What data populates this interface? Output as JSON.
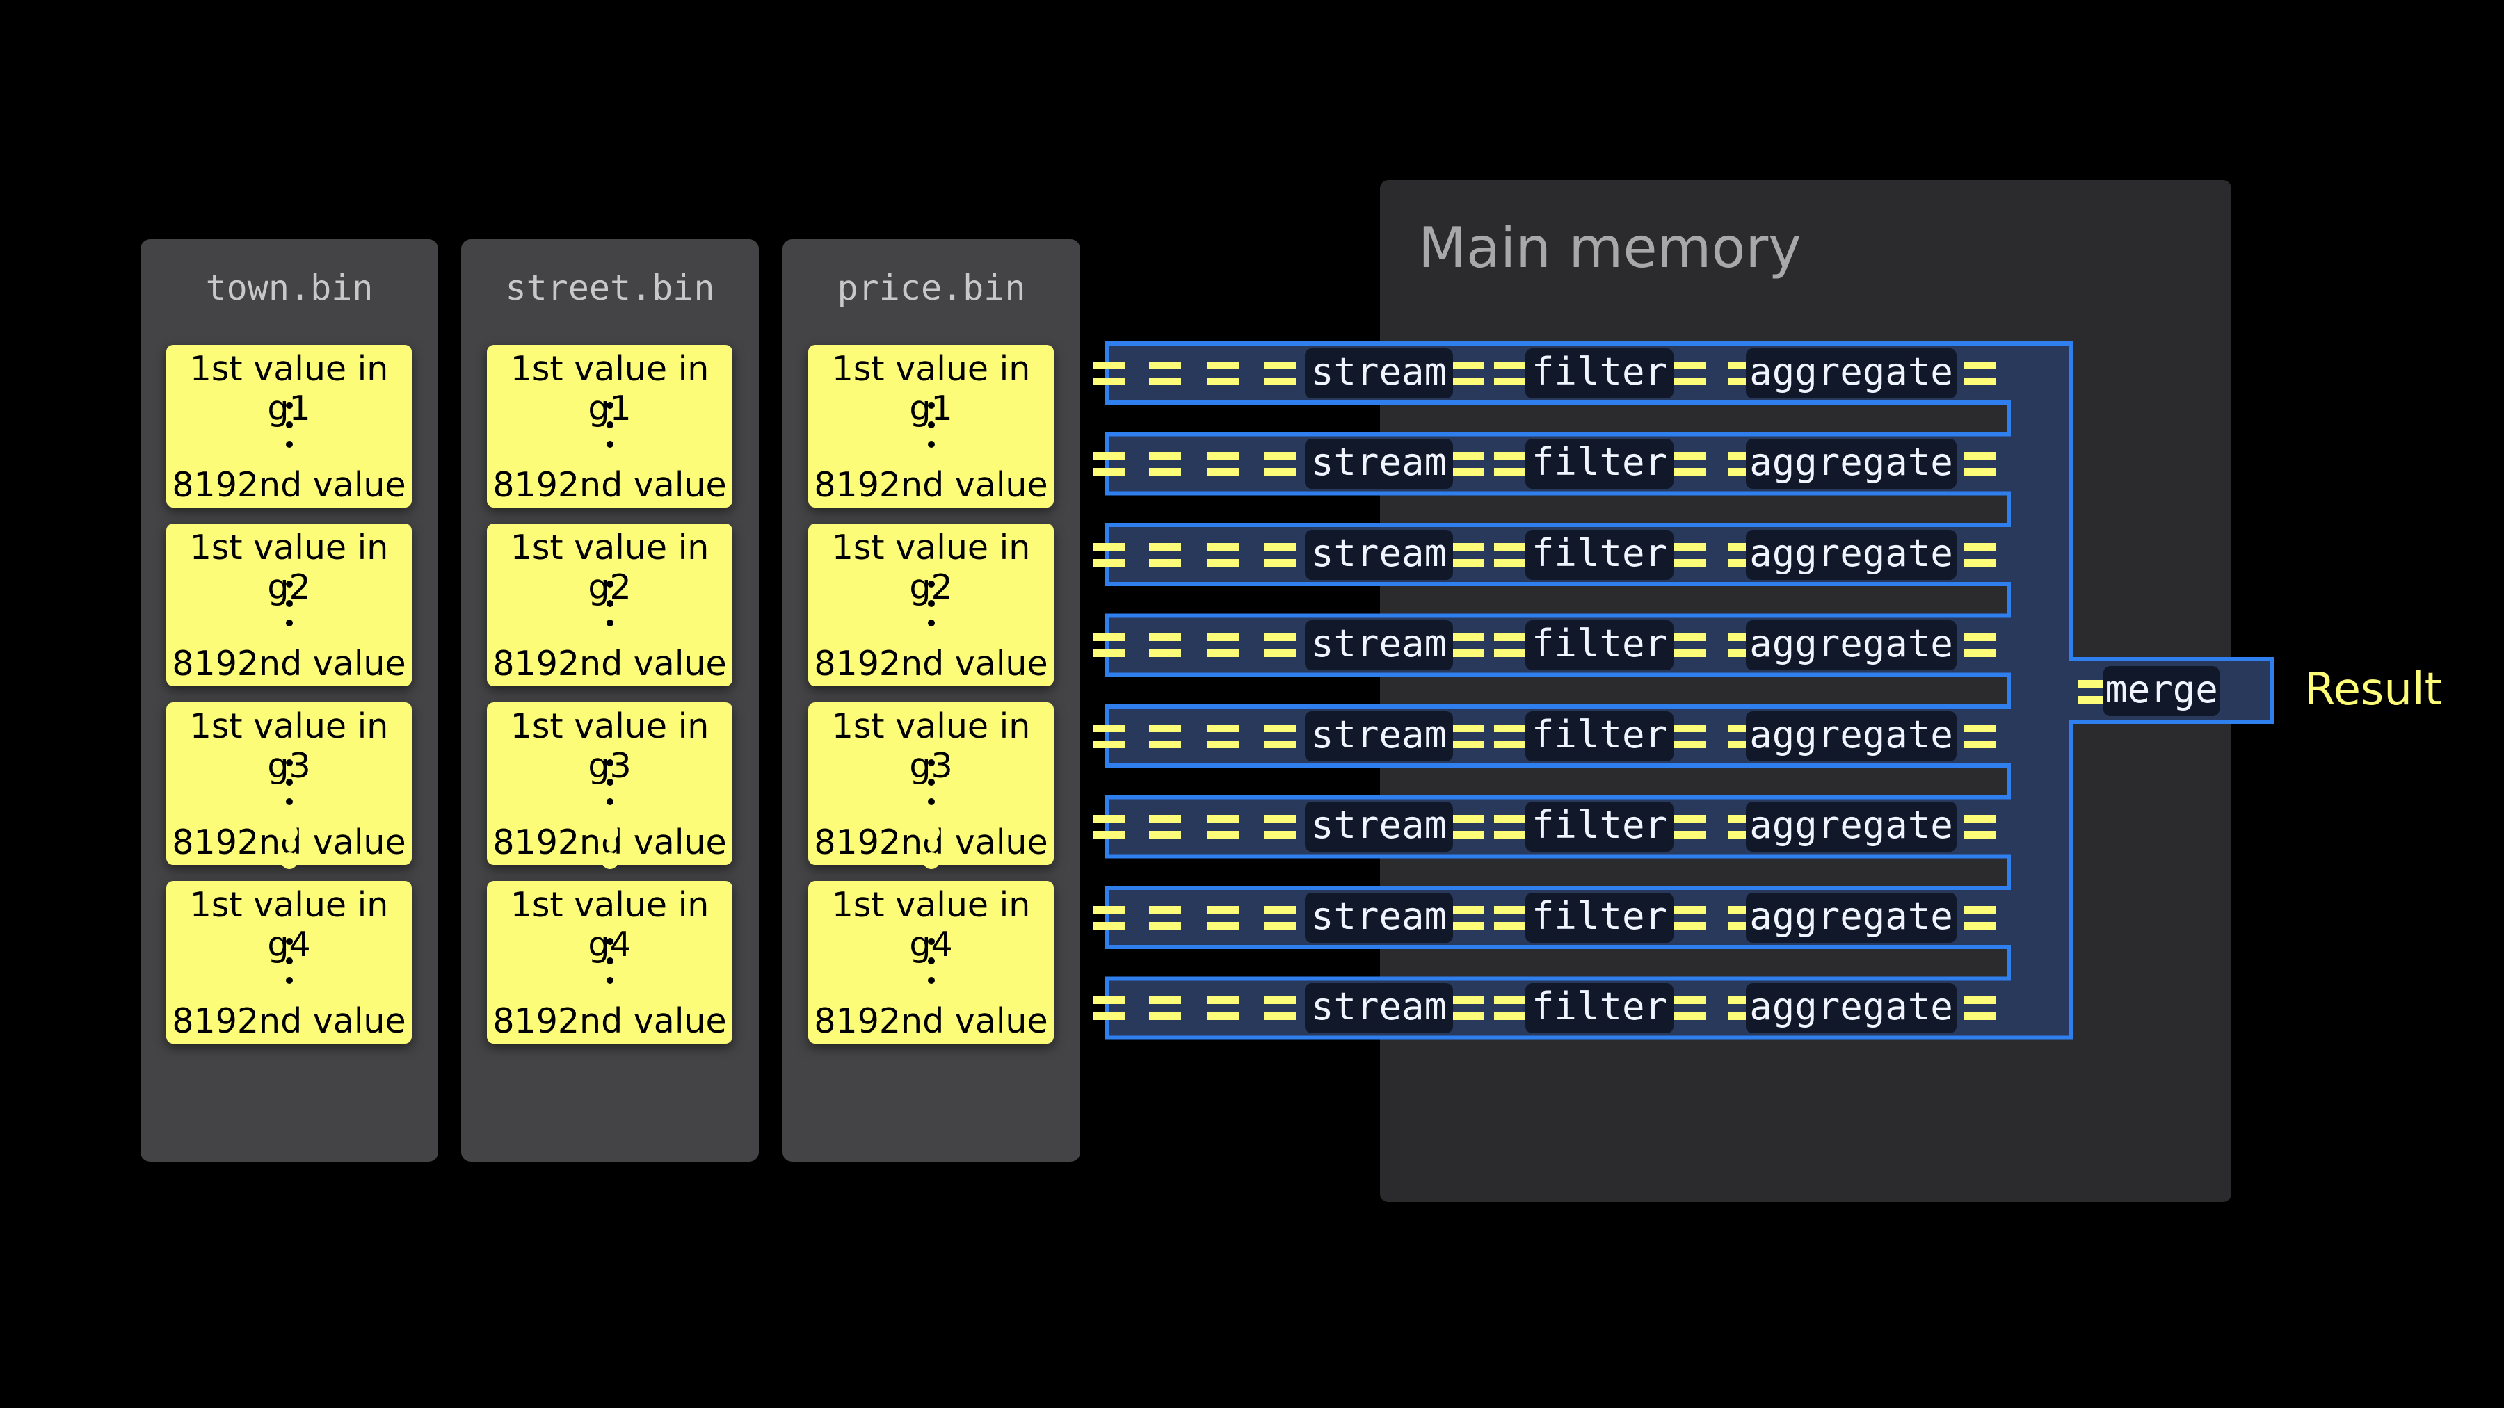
{
  "columns": [
    {
      "title": "town.bin"
    },
    {
      "title": "street.bin"
    },
    {
      "title": "price.bin"
    }
  ],
  "granules": [
    {
      "first": "1st value in g1",
      "last": "8192nd value"
    },
    {
      "first": "1st value in g2",
      "last": "8192nd value"
    },
    {
      "first": "1st value in g3",
      "last": "8192nd value"
    },
    {
      "first": "1st value in g4",
      "last": "8192nd value"
    }
  ],
  "memory": {
    "title": "Main memory"
  },
  "pipeline": {
    "stream": "stream",
    "filter": "filter",
    "aggregate": "aggregate",
    "lanes": 8
  },
  "merge": {
    "label": "merge"
  },
  "result": {
    "label": "Result"
  },
  "colors": {
    "yellow": "#fdfc78",
    "pipe_fill": "#28395c",
    "pipe_border": "#2f7fee",
    "column_bg": "#444446",
    "memory_bg": "#2b2b2d"
  }
}
